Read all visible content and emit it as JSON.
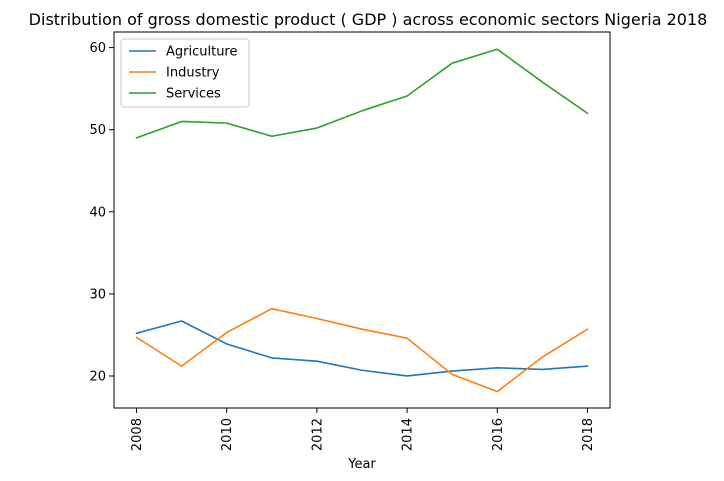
{
  "chart_data": {
    "type": "line",
    "title": "Distribution of gross domestic product ( GDP ) across economic sectors Nigeria 2018",
    "xlabel": "Year",
    "ylabel": "",
    "x": [
      2008,
      2009,
      2010,
      2011,
      2012,
      2013,
      2014,
      2015,
      2016,
      2017,
      2018
    ],
    "xticks": [
      2008,
      2010,
      2012,
      2014,
      2016,
      2018
    ],
    "xlim": [
      2007.5,
      2018.5
    ],
    "yticks": [
      20,
      30,
      40,
      50,
      60
    ],
    "ylim": [
      16.1,
      61.9
    ],
    "grid": false,
    "legend_position": "upper-left",
    "series": [
      {
        "name": "Agriculture",
        "color": "#1f77b4",
        "values": [
          25.2,
          26.7,
          23.9,
          22.2,
          21.8,
          20.7,
          20.0,
          20.6,
          21.0,
          20.8,
          21.2
        ]
      },
      {
        "name": "Industry",
        "color": "#ff7f0e",
        "values": [
          24.7,
          21.2,
          25.3,
          28.2,
          27.0,
          25.7,
          24.6,
          20.2,
          18.1,
          22.3,
          25.7
        ]
      },
      {
        "name": "Services",
        "color": "#2ca02c",
        "values": [
          49.0,
          51.0,
          50.8,
          49.2,
          50.2,
          52.3,
          54.1,
          58.1,
          59.8,
          55.8,
          52.0
        ]
      }
    ]
  }
}
